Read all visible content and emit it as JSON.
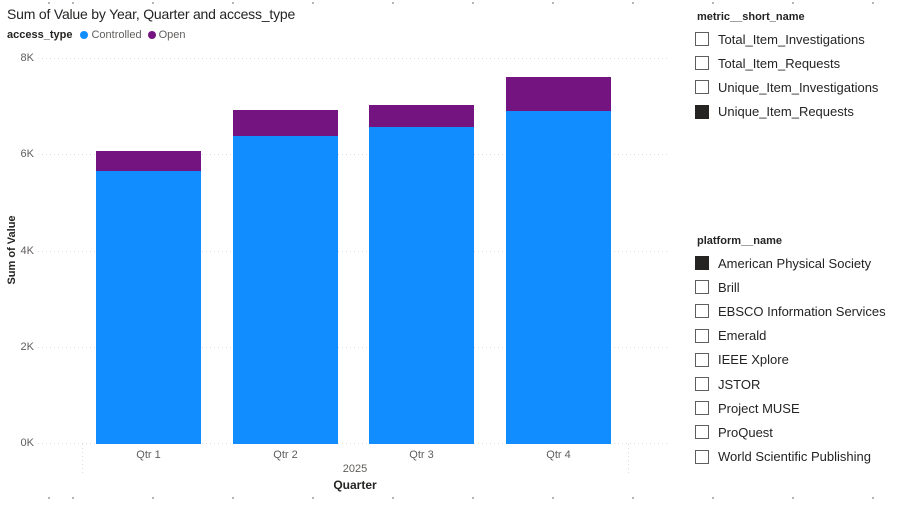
{
  "chart": {
    "title": "Sum of Value by Year, Quarter and access_type",
    "legend": {
      "title": "access_type",
      "items": [
        {
          "label": "Controlled",
          "color": "#118DFF"
        },
        {
          "label": "Open",
          "color": "#731480"
        }
      ]
    },
    "y_axis": {
      "title": "Sum of Value",
      "ticks": [
        "0K",
        "2K",
        "4K",
        "6K",
        "8K"
      ]
    },
    "x_axis": {
      "title": "Quarter",
      "year_label": "2025",
      "categories": [
        "Qtr 1",
        "Qtr 2",
        "Qtr 3",
        "Qtr 4"
      ]
    }
  },
  "chart_data": {
    "type": "bar",
    "stacked": true,
    "title": "Sum of Value by Year, Quarter and access_type",
    "categories": [
      "Qtr 1",
      "Qtr 2",
      "Qtr 3",
      "Qtr 4"
    ],
    "series": [
      {
        "name": "Controlled",
        "color": "#118DFF",
        "values": [
          5680,
          6400,
          6580,
          6930
        ]
      },
      {
        "name": "Open",
        "color": "#731480",
        "values": [
          410,
          540,
          470,
          690
        ]
      }
    ],
    "totals": [
      6090,
      6940,
      7050,
      7620
    ],
    "xlabel": "Quarter",
    "ylabel": "Sum of Value",
    "year_group": "2025",
    "ylim": [
      0,
      8000
    ],
    "ytick_step": 2000,
    "grid": "horizontal-dotted",
    "legend_position": "top-left"
  },
  "slicers": [
    {
      "title": "metric__short_name",
      "items": [
        {
          "label": "Total_Item_Investigations",
          "checked": false
        },
        {
          "label": "Total_Item_Requests",
          "checked": false
        },
        {
          "label": "Unique_Item_Investigations",
          "checked": false
        },
        {
          "label": "Unique_Item_Requests",
          "checked": true
        }
      ]
    },
    {
      "title": "platform__name",
      "items": [
        {
          "label": "American Physical Society",
          "checked": true
        },
        {
          "label": "Brill",
          "checked": false
        },
        {
          "label": "EBSCO Information Services",
          "checked": false
        },
        {
          "label": "Emerald",
          "checked": false
        },
        {
          "label": "IEEE Xplore",
          "checked": false
        },
        {
          "label": "JSTOR",
          "checked": false
        },
        {
          "label": "Project MUSE",
          "checked": false
        },
        {
          "label": "ProQuest",
          "checked": false
        },
        {
          "label": "World Scientific Publishing",
          "checked": false
        }
      ]
    }
  ],
  "colors": {
    "controlled": "#118DFF",
    "open": "#731480",
    "text_dark": "#252423",
    "text_gray": "#605E5C",
    "gridline": "#DCDCDC",
    "checkbox_fill": "#252423"
  }
}
